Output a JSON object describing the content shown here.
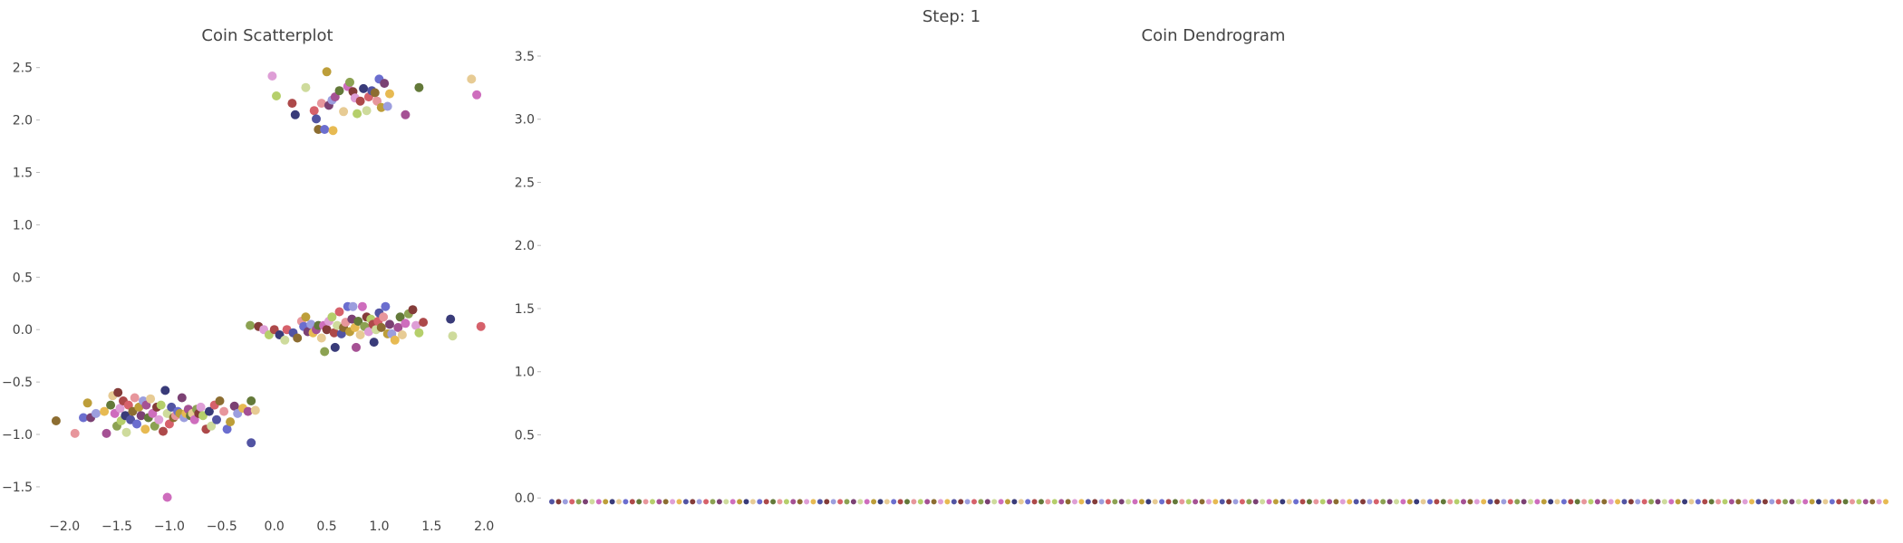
{
  "figure": {
    "suptitle": "Step: 1"
  },
  "colors": [
    "#7b4173",
    "#a55194",
    "#ce6dbd",
    "#de9ed6",
    "#393b79",
    "#5254a3",
    "#6b6ecf",
    "#9c9ede",
    "#637939",
    "#8ca252",
    "#b5cf6b",
    "#cedb9c",
    "#8c6d31",
    "#bd9e39",
    "#e7ba52",
    "#e7cb94",
    "#843c39",
    "#ad494a",
    "#d6616b",
    "#e7969c"
  ],
  "chart_data": [
    {
      "type": "scatter",
      "title": "Coin Scatterplot",
      "xlabel": "",
      "ylabel": "",
      "xlim": [
        -2.2,
        2.05
      ],
      "ylim": [
        -1.82,
        2.67
      ],
      "xticks": [
        "−2.0",
        "−1.5",
        "−1.0",
        "−0.5",
        "0.0",
        "0.5",
        "1.0",
        "1.5",
        "2.0"
      ],
      "xtick_values": [
        -2.0,
        -1.5,
        -1.0,
        -0.5,
        0.0,
        0.5,
        1.0,
        1.5,
        2.0
      ],
      "yticks": [
        "−1.5",
        "−1.0",
        "−0.5",
        "0.0",
        "0.5",
        "1.0",
        "1.5",
        "2.0",
        "2.5"
      ],
      "ytick_values": [
        -1.5,
        -1.0,
        -0.5,
        0.0,
        0.5,
        1.0,
        1.5,
        2.0,
        2.5
      ],
      "grid": false,
      "points": [
        [
          -0.02,
          2.42
        ],
        [
          0.02,
          2.23
        ],
        [
          0.17,
          2.16
        ],
        [
          0.2,
          2.05
        ],
        [
          0.3,
          2.31
        ],
        [
          0.38,
          2.09
        ],
        [
          0.4,
          2.01
        ],
        [
          0.42,
          1.91
        ],
        [
          0.45,
          2.16
        ],
        [
          0.48,
          1.91
        ],
        [
          0.5,
          2.46
        ],
        [
          0.52,
          2.14
        ],
        [
          0.55,
          2.19
        ],
        [
          0.56,
          1.9
        ],
        [
          0.58,
          2.22
        ],
        [
          0.62,
          2.28
        ],
        [
          0.66,
          2.08
        ],
        [
          0.7,
          2.32
        ],
        [
          0.72,
          2.36
        ],
        [
          0.75,
          2.27
        ],
        [
          0.77,
          2.21
        ],
        [
          0.79,
          2.06
        ],
        [
          0.82,
          2.18
        ],
        [
          0.85,
          2.3
        ],
        [
          0.88,
          2.09
        ],
        [
          0.9,
          2.22
        ],
        [
          0.93,
          2.28
        ],
        [
          0.96,
          2.26
        ],
        [
          0.98,
          2.18
        ],
        [
          1.0,
          2.39
        ],
        [
          1.02,
          2.12
        ],
        [
          1.05,
          2.35
        ],
        [
          1.08,
          2.13
        ],
        [
          1.1,
          2.25
        ],
        [
          1.25,
          2.05
        ],
        [
          1.38,
          2.31
        ],
        [
          1.88,
          2.39
        ],
        [
          1.93,
          2.24
        ],
        [
          -0.23,
          0.04
        ],
        [
          -0.15,
          0.03
        ],
        [
          -0.1,
          0.0
        ],
        [
          -0.05,
          -0.05
        ],
        [
          0.0,
          0.0
        ],
        [
          0.05,
          -0.05
        ],
        [
          0.1,
          -0.1
        ],
        [
          0.12,
          0.0
        ],
        [
          0.18,
          -0.03
        ],
        [
          0.22,
          -0.08
        ],
        [
          0.26,
          0.08
        ],
        [
          0.28,
          0.03
        ],
        [
          0.3,
          0.12
        ],
        [
          0.32,
          -0.02
        ],
        [
          0.35,
          0.05
        ],
        [
          0.37,
          -0.03
        ],
        [
          0.4,
          0.0
        ],
        [
          0.42,
          0.04
        ],
        [
          0.45,
          -0.08
        ],
        [
          0.47,
          0.04
        ],
        [
          0.48,
          -0.21
        ],
        [
          0.5,
          0.0
        ],
        [
          0.52,
          0.08
        ],
        [
          0.55,
          0.12
        ],
        [
          0.57,
          -0.03
        ],
        [
          0.58,
          -0.17
        ],
        [
          0.6,
          0.04
        ],
        [
          0.62,
          0.17
        ],
        [
          0.64,
          -0.04
        ],
        [
          0.66,
          0.02
        ],
        [
          0.68,
          0.07
        ],
        [
          0.7,
          0.22
        ],
        [
          0.72,
          -0.02
        ],
        [
          0.74,
          0.1
        ],
        [
          0.75,
          0.22
        ],
        [
          0.77,
          0.02
        ],
        [
          0.78,
          -0.17
        ],
        [
          0.8,
          0.08
        ],
        [
          0.82,
          -0.05
        ],
        [
          0.84,
          0.22
        ],
        [
          0.86,
          0.03
        ],
        [
          0.88,
          0.12
        ],
        [
          0.9,
          -0.02
        ],
        [
          0.92,
          0.1
        ],
        [
          0.94,
          0.05
        ],
        [
          0.95,
          -0.12
        ],
        [
          0.97,
          0.0
        ],
        [
          0.99,
          0.08
        ],
        [
          1.0,
          0.16
        ],
        [
          1.02,
          0.02
        ],
        [
          1.04,
          0.12
        ],
        [
          1.06,
          0.22
        ],
        [
          1.08,
          -0.04
        ],
        [
          1.1,
          0.05
        ],
        [
          1.12,
          -0.04
        ],
        [
          1.15,
          -0.1
        ],
        [
          1.18,
          0.02
        ],
        [
          1.2,
          0.12
        ],
        [
          1.22,
          -0.05
        ],
        [
          1.25,
          0.06
        ],
        [
          1.28,
          0.15
        ],
        [
          1.32,
          0.19
        ],
        [
          1.35,
          0.04
        ],
        [
          1.38,
          -0.03
        ],
        [
          1.42,
          0.07
        ],
        [
          1.68,
          0.1
        ],
        [
          1.7,
          -0.06
        ],
        [
          1.97,
          0.03
        ],
        [
          -0.22,
          -1.08
        ],
        [
          -2.08,
          -0.87
        ],
        [
          -1.9,
          -0.99
        ],
        [
          -1.82,
          -0.84
        ],
        [
          -1.78,
          -0.7
        ],
        [
          -1.75,
          -0.84
        ],
        [
          -1.7,
          -0.8
        ],
        [
          -1.62,
          -0.78
        ],
        [
          -1.6,
          -0.99
        ],
        [
          -1.56,
          -0.72
        ],
        [
          -1.54,
          -0.63
        ],
        [
          -1.52,
          -0.8
        ],
        [
          -1.5,
          -0.92
        ],
        [
          -1.49,
          -0.6
        ],
        [
          -1.47,
          -0.75
        ],
        [
          -1.46,
          -0.87
        ],
        [
          -1.44,
          -0.68
        ],
        [
          -1.42,
          -0.82
        ],
        [
          -1.41,
          -0.98
        ],
        [
          -1.39,
          -0.72
        ],
        [
          -1.37,
          -0.86
        ],
        [
          -1.35,
          -0.78
        ],
        [
          -1.33,
          -0.65
        ],
        [
          -1.31,
          -0.9
        ],
        [
          -1.29,
          -0.74
        ],
        [
          -1.27,
          -0.82
        ],
        [
          -1.25,
          -0.68
        ],
        [
          -1.23,
          -0.95
        ],
        [
          -1.22,
          -0.72
        ],
        [
          -1.2,
          -0.84
        ],
        [
          -1.18,
          -0.66
        ],
        [
          -1.16,
          -0.8
        ],
        [
          -1.14,
          -0.92
        ],
        [
          -1.12,
          -0.74
        ],
        [
          -1.1,
          -0.86
        ],
        [
          -1.08,
          -0.72
        ],
        [
          -1.06,
          -0.97
        ],
        [
          -1.04,
          -0.58
        ],
        [
          -1.02,
          -0.8
        ],
        [
          -1.0,
          -0.9
        ],
        [
          -0.98,
          -0.74
        ],
        [
          -0.96,
          -0.84
        ],
        [
          -0.94,
          -0.82
        ],
        [
          -0.92,
          -0.78
        ],
        [
          -0.9,
          -0.8
        ],
        [
          -0.88,
          -0.65
        ],
        [
          -0.86,
          -0.84
        ],
        [
          -0.84,
          -0.8
        ],
        [
          -0.82,
          -0.76
        ],
        [
          -0.8,
          -0.82
        ],
        [
          -0.78,
          -0.8
        ],
        [
          -0.76,
          -0.86
        ],
        [
          -0.74,
          -0.76
        ],
        [
          -0.72,
          -0.8
        ],
        [
          -0.7,
          -0.74
        ],
        [
          -0.68,
          -0.82
        ],
        [
          -0.65,
          -0.95
        ],
        [
          -0.62,
          -0.78
        ],
        [
          -0.6,
          -0.92
        ],
        [
          -0.57,
          -0.72
        ],
        [
          -0.55,
          -0.86
        ],
        [
          -0.52,
          -0.68
        ],
        [
          -0.48,
          -0.78
        ],
        [
          -0.45,
          -0.95
        ],
        [
          -0.42,
          -0.88
        ],
        [
          -0.38,
          -0.73
        ],
        [
          -0.35,
          -0.8
        ],
        [
          -0.3,
          -0.75
        ],
        [
          -0.25,
          -0.78
        ],
        [
          -0.22,
          -0.68
        ],
        [
          -0.18,
          -0.77
        ],
        [
          -1.02,
          -1.6
        ]
      ]
    },
    {
      "type": "dendrogram",
      "title": "Coin Dendrogram",
      "xlabel": "",
      "ylabel": "",
      "ylim": [
        -0.07,
        3.55
      ],
      "yticks": [
        "0.0",
        "0.5",
        "1.0",
        "1.5",
        "2.0",
        "2.5",
        "3.0",
        "3.5"
      ],
      "ytick_values": [
        0.0,
        0.5,
        1.0,
        1.5,
        2.0,
        2.5,
        3.0,
        3.5
      ],
      "grid": false,
      "leaf_count": 200,
      "leaf_height": -0.03
    }
  ]
}
